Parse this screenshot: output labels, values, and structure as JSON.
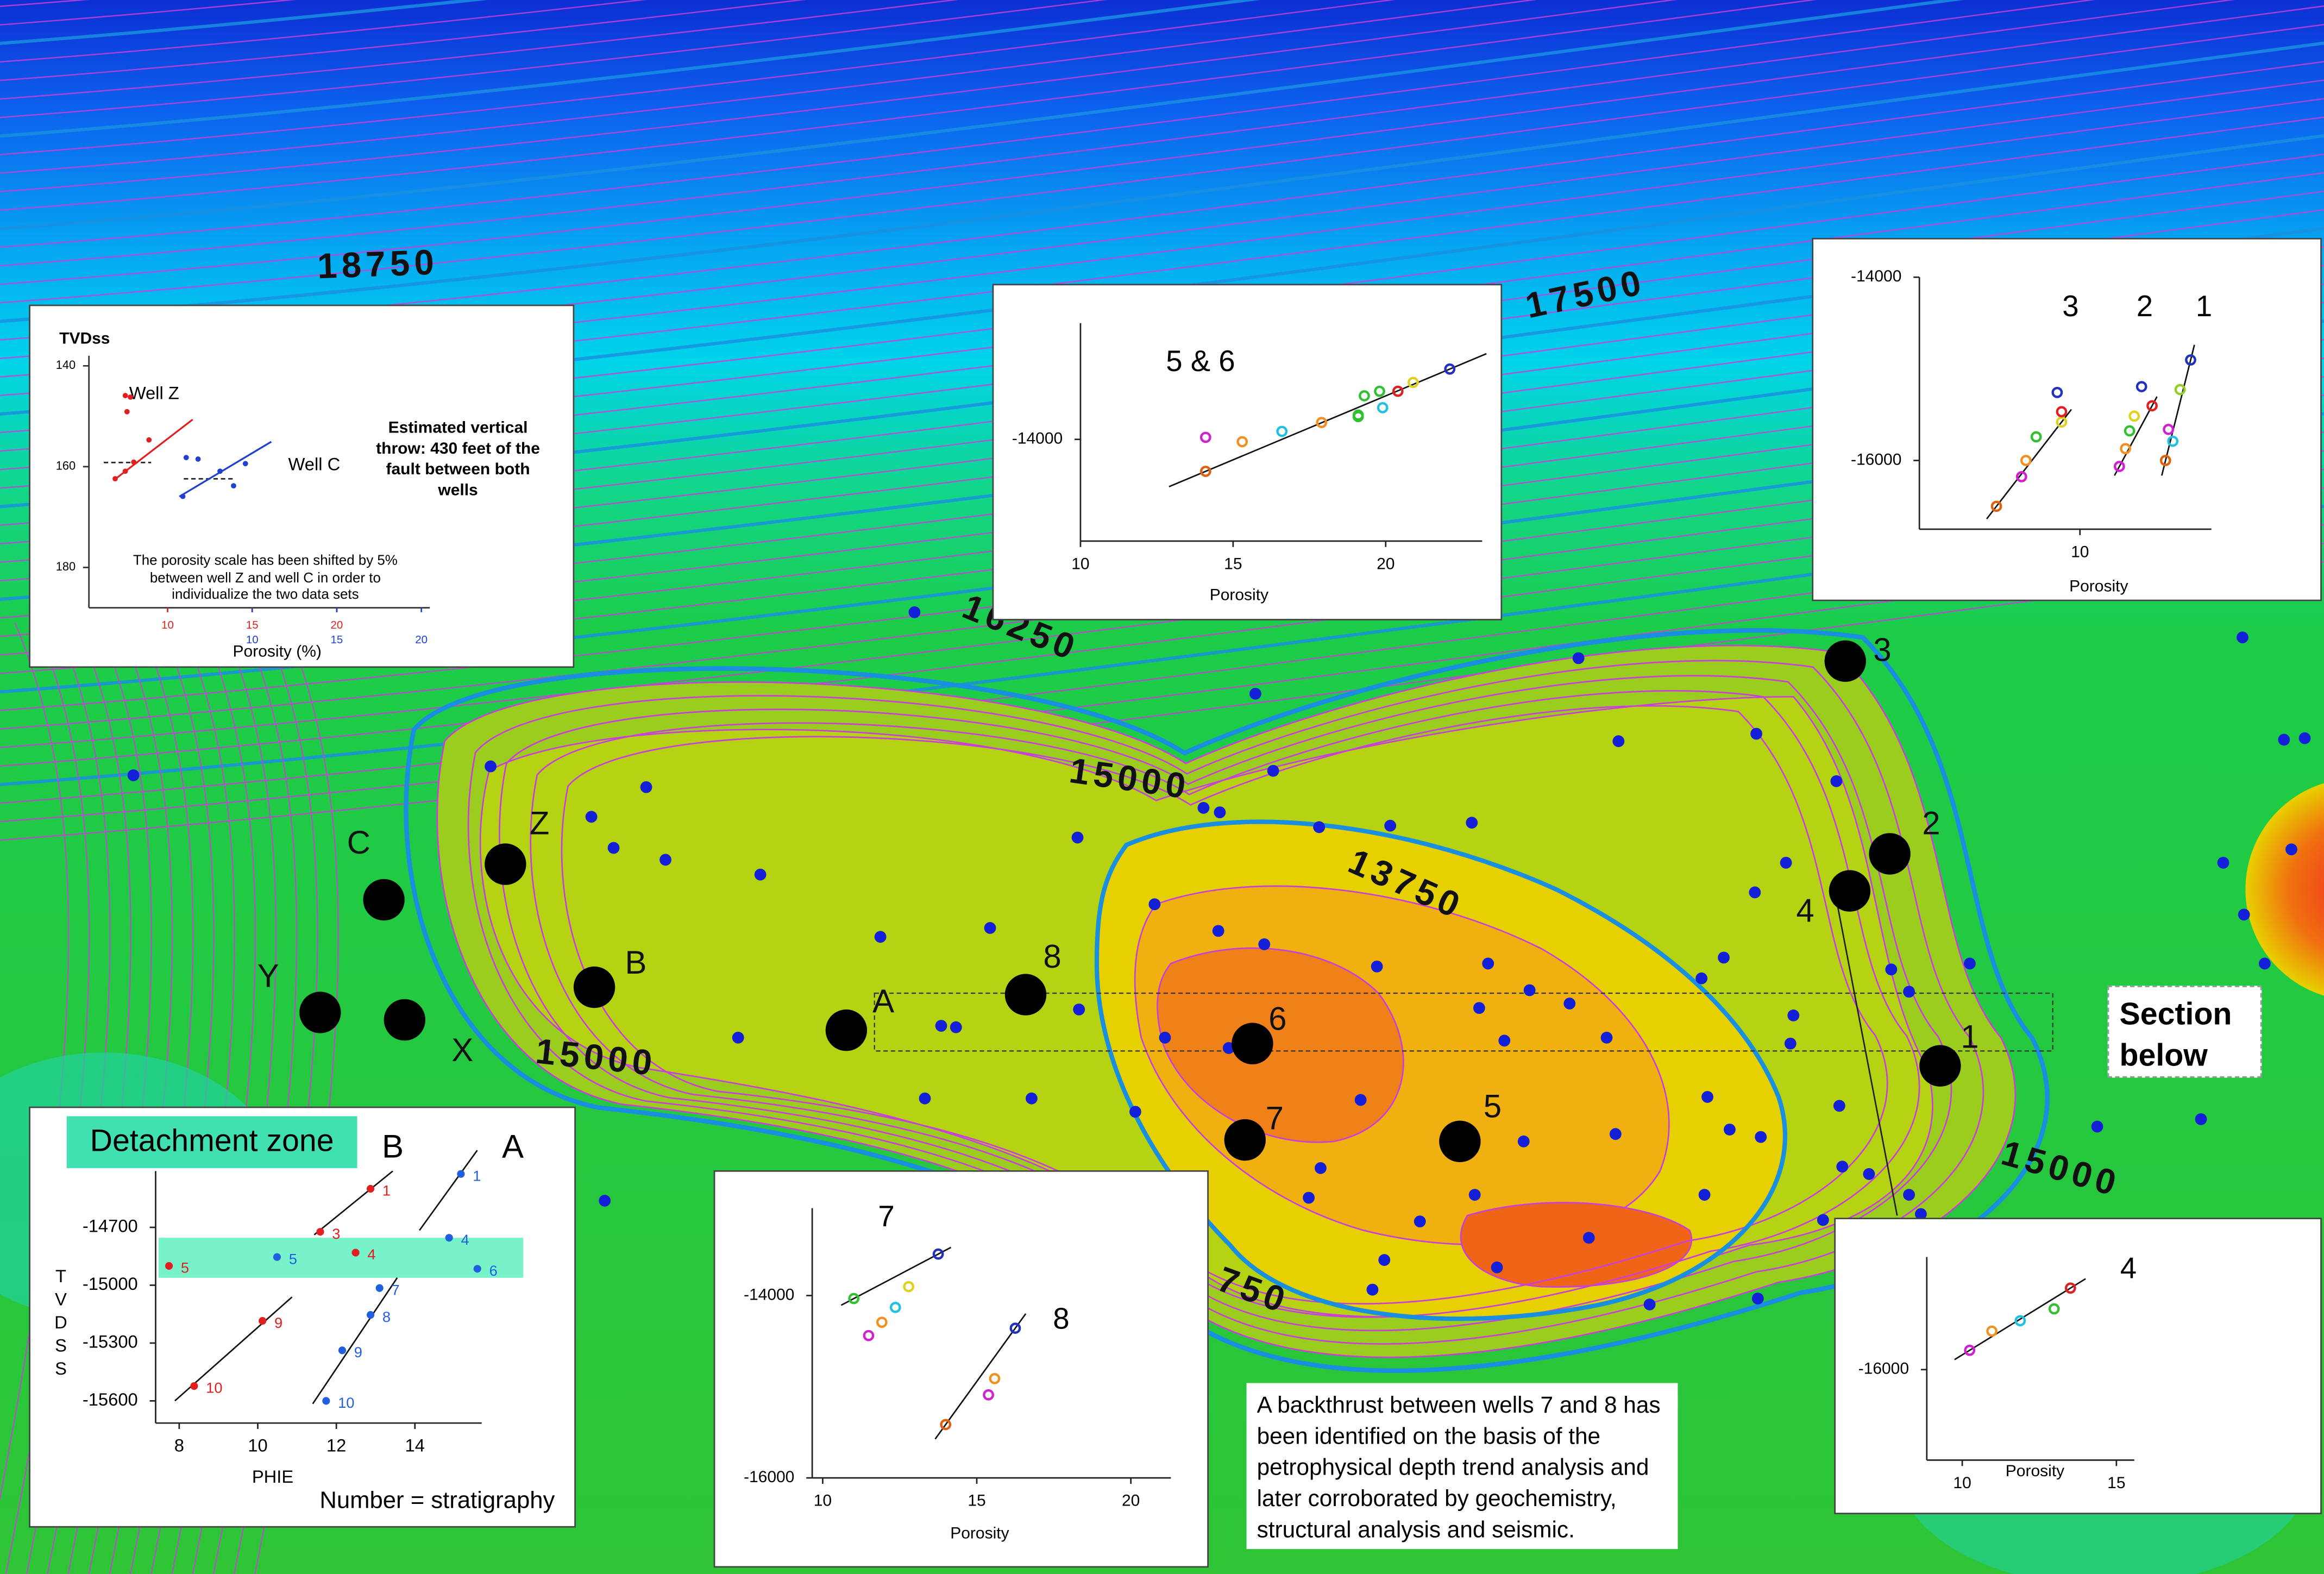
{
  "map": {
    "contour_labels": [
      "18750",
      "17500",
      "16250",
      "15000",
      "13750",
      "15000",
      "15000",
      "750"
    ],
    "wells": [
      "C",
      "Z",
      "Y",
      "X",
      "B",
      "A",
      "8",
      "6",
      "7",
      "5",
      "3",
      "2",
      "4",
      "1"
    ],
    "section_label": "Section below"
  },
  "insets": {
    "well_z_c": {
      "y_title": "TVDss",
      "ylim": [
        188,
        138
      ],
      "yticks": [
        140,
        160,
        180
      ],
      "x_label": "Porosity (%)",
      "throw_note": "Estimated vertical throw: 430 feet of the fault between both wells",
      "shift_note": "The porosity scale has been shifted by 5% between well Z and well C in order to individualize the two data sets",
      "series": [
        {
          "name": "Well Z",
          "color": "#e02020",
          "xlim": [
            5.35,
            25.5
          ],
          "xticks": [
            10,
            15,
            20
          ],
          "points": [
            {
              "x": 6.9,
              "y": 162.4
            },
            {
              "x": 7.5,
              "y": 160.9
            },
            {
              "x": 8.0,
              "y": 159.1
            },
            {
              "x": 8.9,
              "y": 154.7
            },
            {
              "x": 7.6,
              "y": 149.1
            },
            {
              "x": 7.5,
              "y": 145.9
            },
            {
              "x": 7.8,
              "y": 146.2
            }
          ]
        },
        {
          "name": "Well C",
          "color": "#2040d0",
          "xlim": [
            0.35,
            20.5
          ],
          "xticks": [
            10,
            15,
            20
          ],
          "points": [
            {
              "x": 6.1,
              "y": 158.2
            },
            {
              "x": 6.8,
              "y": 158.5
            },
            {
              "x": 8.1,
              "y": 160.9
            },
            {
              "x": 9.6,
              "y": 159.4
            },
            {
              "x": 5.9,
              "y": 165.9
            },
            {
              "x": 8.9,
              "y": 163.8
            }
          ]
        }
      ]
    },
    "wells_5_6": {
      "xlim": [
        10,
        23.16
      ],
      "xticks": [
        10,
        15,
        20
      ],
      "ylim": [
        -14700,
        -13200
      ],
      "yticks": [
        -14000
      ],
      "x_label": "Porosity",
      "series": [
        {
          "name": "5 & 6",
          "color": "#000000",
          "points": [
            {
              "x": 14.1,
              "y": -14220,
              "color": "#e06010"
            },
            {
              "x": 15.3,
              "y": -14016,
              "color": "#f09020"
            },
            {
              "x": 16.6,
              "y": -13945,
              "color": "#20c0e0"
            },
            {
              "x": 17.9,
              "y": -13884,
              "color": "#f09020"
            },
            {
              "x": 14.1,
              "y": -13986,
              "color": "#d020d0"
            },
            {
              "x": 19.1,
              "y": -13833,
              "color": "#30c030"
            },
            {
              "x": 19.3,
              "y": -13700,
              "color": "#30c030"
            },
            {
              "x": 19.8,
              "y": -13669,
              "color": "#30c030"
            },
            {
              "x": 20.4,
              "y": -13669,
              "color": "#e02020"
            },
            {
              "x": 19.9,
              "y": -13782,
              "color": "#20c0e0"
            },
            {
              "x": 19.1,
              "y": -13843,
              "color": "#30c030"
            },
            {
              "x": 20.9,
              "y": -13608,
              "color": "#e0d020"
            },
            {
              "x": 22.1,
              "y": -13516,
              "color": "#2030c0"
            }
          ]
        }
      ]
    },
    "wells_1_2_3": {
      "xlim": [
        4.5,
        14.5
      ],
      "xticks": [
        10
      ],
      "ylim": [
        -16750,
        -14000
      ],
      "yticks": [
        -14000,
        -16000
      ],
      "x_label": "Porosity",
      "series": [
        {
          "name": "3",
          "color": "#000000",
          "points": [
            {
              "x": 7.14,
              "y": -16500,
              "color": "#e06010"
            },
            {
              "x": 8.0,
              "y": -16177,
              "color": "#d020d0"
            },
            {
              "x": 8.15,
              "y": -16000,
              "color": "#f09020"
            },
            {
              "x": 8.5,
              "y": -15742,
              "color": "#30c030"
            },
            {
              "x": 9.37,
              "y": -15581,
              "color": "#e0d020"
            },
            {
              "x": 9.37,
              "y": -15468,
              "color": "#e02020"
            },
            {
              "x": 9.22,
              "y": -15258,
              "color": "#2030c0"
            }
          ]
        },
        {
          "name": "2",
          "color": "#000000",
          "points": [
            {
              "x": 11.35,
              "y": -16065,
              "color": "#d020d0"
            },
            {
              "x": 11.56,
              "y": -15871,
              "color": "#f09020"
            },
            {
              "x": 11.7,
              "y": -15677,
              "color": "#30c030"
            },
            {
              "x": 11.86,
              "y": -15516,
              "color": "#e0d020"
            },
            {
              "x": 12.47,
              "y": -15403,
              "color": "#e02020"
            },
            {
              "x": 12.11,
              "y": -15194,
              "color": "#2030c0"
            }
          ]
        },
        {
          "name": "1",
          "color": "#000000",
          "points": [
            {
              "x": 12.93,
              "y": -16000,
              "color": "#e06010"
            },
            {
              "x": 13.18,
              "y": -15790,
              "color": "#20c0e0"
            },
            {
              "x": 13.03,
              "y": -15661,
              "color": "#d020d0"
            },
            {
              "x": 13.43,
              "y": -15226,
              "color": "#90d020"
            },
            {
              "x": 13.79,
              "y": -14903,
              "color": "#2030c0"
            }
          ]
        }
      ]
    },
    "well_4": {
      "xlim": [
        8.85,
        15.58
      ],
      "xticks": [
        10,
        15
      ],
      "ylim": [
        -16985,
        -14775
      ],
      "yticks": [
        -16000
      ],
      "x_label": "Porosity",
      "series": [
        {
          "name": "4",
          "color": "#000000",
          "points": [
            {
              "x": 10.24,
              "y": -15790,
              "color": "#d020d0"
            },
            {
              "x": 10.96,
              "y": -15581,
              "color": "#f09020"
            },
            {
              "x": 11.88,
              "y": -15468,
              "color": "#20c0e0"
            },
            {
              "x": 12.98,
              "y": -15339,
              "color": "#30c030"
            },
            {
              "x": 13.51,
              "y": -15113,
              "color": "#e02020"
            }
          ]
        }
      ]
    },
    "wells_7_8": {
      "xlim": [
        9.66,
        21.3
      ],
      "xticks": [
        10,
        15,
        20
      ],
      "ylim": [
        -16000,
        -13041
      ],
      "yticks": [
        -14000,
        -16000
      ],
      "x_label": "Porosity",
      "series": [
        {
          "name": "7",
          "color": "#000000",
          "points": [
            {
              "x": 11.01,
              "y": -14033,
              "color": "#30c030"
            },
            {
              "x": 11.49,
              "y": -14439,
              "color": "#d020d0"
            },
            {
              "x": 11.92,
              "y": -14293,
              "color": "#f09020"
            },
            {
              "x": 12.36,
              "y": -14130,
              "color": "#20c0e0"
            },
            {
              "x": 12.79,
              "y": -13902,
              "color": "#e0d020"
            },
            {
              "x": 13.75,
              "y": -13545,
              "color": "#2030c0"
            }
          ]
        },
        {
          "name": "8",
          "color": "#000000",
          "points": [
            {
              "x": 13.99,
              "y": -15415,
              "color": "#e06010"
            },
            {
              "x": 15.38,
              "y": -15089,
              "color": "#d020d0"
            },
            {
              "x": 15.58,
              "y": -14911,
              "color": "#f09020"
            },
            {
              "x": 16.25,
              "y": -14358,
              "color": "#2030c0"
            }
          ]
        }
      ]
    },
    "wells_a_b": {
      "zone_label": "Detachment zone",
      "xlim": [
        7.4,
        15.7
      ],
      "xticks": [
        8,
        10,
        12,
        14
      ],
      "ylim": [
        -15715,
        -14408
      ],
      "yticks": [
        -14700,
        -15000,
        -15300,
        -15600
      ],
      "x_label": "PHIE",
      "y_label": "TVDSS",
      "note": "Number = stratigraphy",
      "series": [
        {
          "name": "B",
          "color": "#e02020",
          "points": [
            {
              "x": 12.87,
              "y": -14500,
              "strat": 1
            },
            {
              "x": 11.59,
              "y": -14723,
              "strat": 3
            },
            {
              "x": 12.49,
              "y": -14831,
              "strat": 4
            },
            {
              "x": 7.74,
              "y": -14900,
              "strat": 5
            },
            {
              "x": 10.12,
              "y": -15185,
              "strat": 9
            },
            {
              "x": 8.38,
              "y": -15523,
              "strat": 10
            }
          ]
        },
        {
          "name": "A",
          "color": "#2060e0",
          "points": [
            {
              "x": 15.17,
              "y": -14423,
              "strat": 1
            },
            {
              "x": 14.87,
              "y": -14754,
              "strat": 4
            },
            {
              "x": 10.49,
              "y": -14854,
              "strat": 5
            },
            {
              "x": 15.59,
              "y": -14915,
              "strat": 6
            },
            {
              "x": 13.1,
              "y": -15015,
              "strat": 7
            },
            {
              "x": 12.87,
              "y": -15154,
              "strat": 8
            },
            {
              "x": 12.15,
              "y": -15338,
              "strat": 9
            },
            {
              "x": 11.74,
              "y": -15600,
              "strat": 10
            }
          ]
        }
      ]
    }
  },
  "backthrust_note": "A backthrust between wells 7 and 8 has been identified on the basis of the petrophysical depth trend analysis and later corroborated by geochemistry, structural analysis and seismic."
}
